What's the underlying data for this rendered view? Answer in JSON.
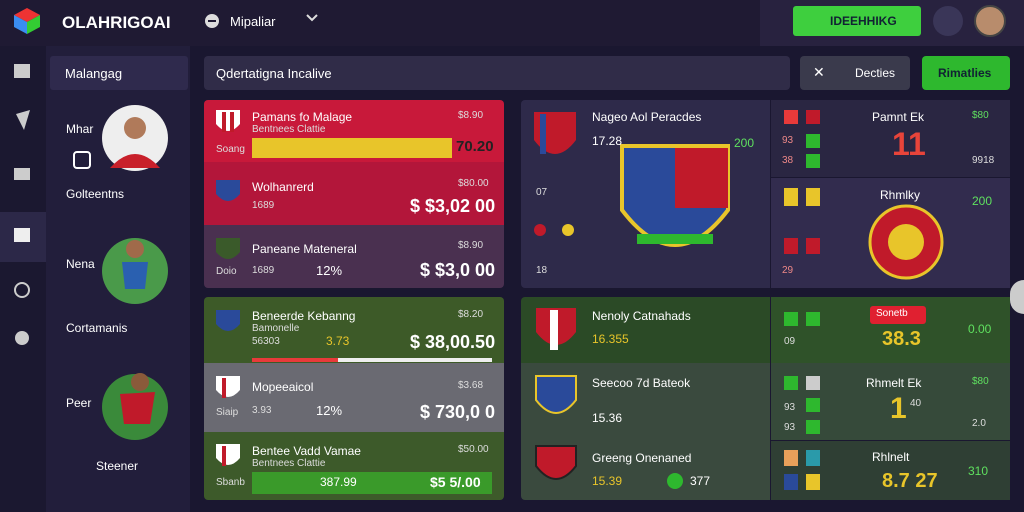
{
  "header": {
    "brand": "OLAHRIGOAI",
    "nav": "Mipaliar",
    "action": "IDEEHHIKG"
  },
  "side_panel": {
    "title": "Malangag",
    "players": [
      {
        "name": "Mhar",
        "team": "Golteentns"
      },
      {
        "name": "Nena",
        "team": "Cortamanis"
      },
      {
        "name": "Peer",
        "team": "Steener"
      }
    ]
  },
  "toolbar": {
    "search": "Qdertatigna Incalive",
    "filter": "Decties",
    "primary": "Rimatlies"
  },
  "matches": [
    {
      "title": "Pamans fo Malage",
      "subtitle": "Bentnees Clattie",
      "code": "Soang",
      "odds": "$8.90",
      "price": "70.20"
    },
    {
      "title": "Wolhanrerd",
      "code": "1689",
      "odds": "$80.00",
      "price": "$ $3,02 00"
    },
    {
      "title": "Paneane Mateneral",
      "code": "Doio",
      "stat": "1689",
      "pct": "12%",
      "odds": "$8.90",
      "price": "$ $3,0 00"
    },
    {
      "title": "Beneerde Kebanng",
      "subtitle": "Bamonelle",
      "code": "56303",
      "stat": "3.73",
      "odds": "$8.20",
      "price": "$ 38,00.50"
    },
    {
      "title": "Mopeeaicol",
      "code": "Siaip",
      "stat": "3.93",
      "pct": "12%",
      "odds": "$3.68",
      "price": "$ 730,0 0"
    },
    {
      "title": "Bentee Vadd Vamae",
      "subtitle": "Bentnees Clattie",
      "code": "Sbanb",
      "stat": "387.99",
      "odds": "$50.00",
      "price": "$5 5/.00"
    }
  ],
  "featured": {
    "title": "Nageo Aol Peracdes",
    "time": "17.28",
    "odds": "200",
    "left": [
      "07",
      "18"
    ],
    "right_rows": [
      "93",
      "38"
    ],
    "side_a": {
      "title": "Pamnt Ek",
      "score": "11",
      "odds": "$80",
      "sub": "9918"
    },
    "side_b": {
      "title": "Rhmlky",
      "odds": "200"
    },
    "side_c": [
      "29"
    ]
  },
  "match_b": {
    "title": "Nenoly Catnahads",
    "time": "16.355",
    "row": "09",
    "badge": "Sonetb",
    "score": "38.3",
    "odds": "0.00"
  },
  "match_c": {
    "title": "Seecoo 7d Bateok",
    "time": "15.36",
    "title2": "Greeng Onenaned",
    "time2": "15.39",
    "stat": "377",
    "side_a": {
      "title": "Rhmelt Ek",
      "score": "1",
      "sub": "40",
      "odds": "$80",
      "sub2": "2.0"
    },
    "side_b": {
      "title": "Rhlnelt",
      "score": "8.7 27",
      "odds": "310"
    },
    "rows": [
      "93",
      "93"
    ]
  }
}
